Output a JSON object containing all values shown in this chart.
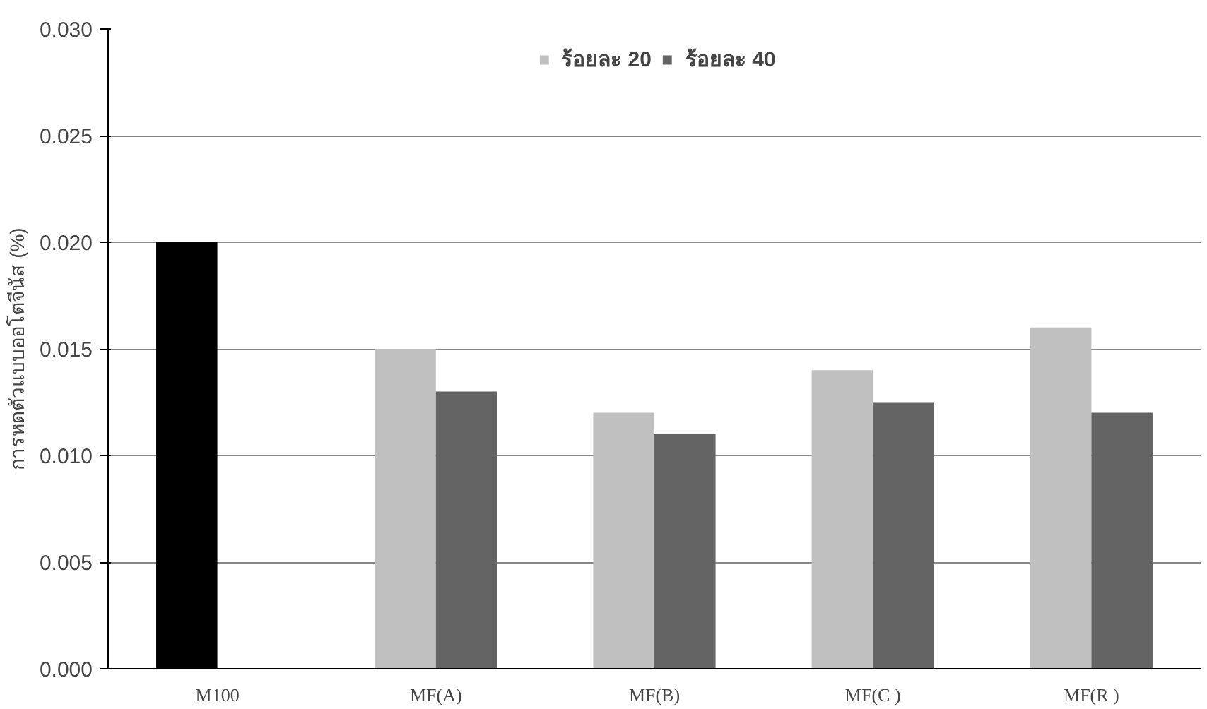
{
  "chart_data": {
    "type": "bar",
    "ylabel": "การหดตัวแบบออโตจีนัส (%)",
    "categories": [
      "M100",
      "MF(A)",
      "MF(B)",
      "MF(C )",
      "MF(R )"
    ],
    "series": [
      {
        "name": "ร้อยละ 20",
        "color": "#c0c0c0",
        "colors": [
          "#000000",
          "#c0c0c0",
          "#c0c0c0",
          "#c0c0c0",
          "#c0c0c0"
        ],
        "values": [
          0.02,
          0.015,
          0.012,
          0.014,
          0.016
        ]
      },
      {
        "name": "ร้อยละ 40",
        "color": "#646464",
        "values": [
          null,
          0.013,
          0.011,
          0.0125,
          0.012
        ]
      }
    ],
    "ylim": [
      0,
      0.03
    ],
    "yticks": [
      {
        "value": 0,
        "label": "0.000"
      },
      {
        "value": 0.005,
        "label": "0.005"
      },
      {
        "value": 0.01,
        "label": "0.010"
      },
      {
        "value": 0.015,
        "label": "0.015"
      },
      {
        "value": 0.02,
        "label": "0.020"
      },
      {
        "value": 0.025,
        "label": "0.025"
      },
      {
        "value": 0.03,
        "label": "0.030"
      }
    ],
    "grid": "y",
    "legend": "top"
  }
}
